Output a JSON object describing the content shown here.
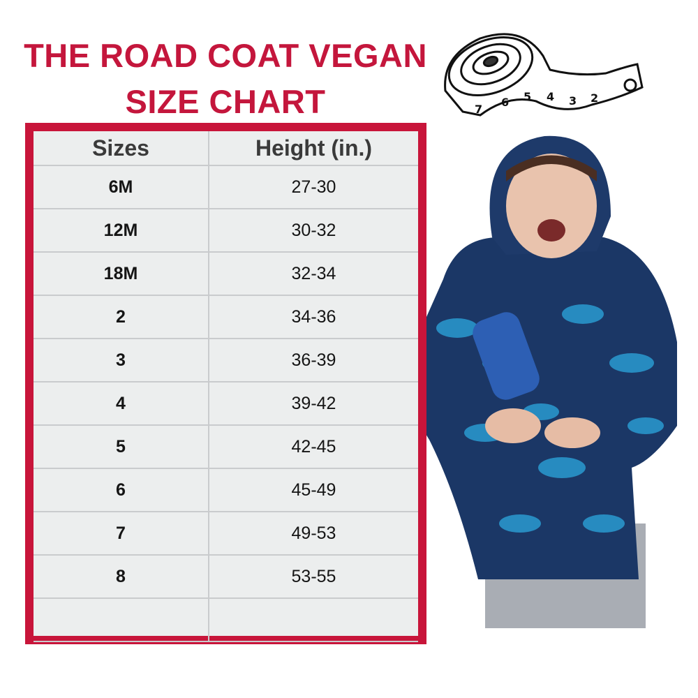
{
  "title": {
    "line1": "THE ROAD COAT VEGAN",
    "line2": "SIZE CHART",
    "color": "#c4163c"
  },
  "table": {
    "border_color": "#c8153a",
    "headers": [
      "Sizes",
      "Height (in.)"
    ],
    "rows": [
      [
        "6M",
        "27-30"
      ],
      [
        "12M",
        "30-32"
      ],
      [
        "18M",
        "32-34"
      ],
      [
        "2",
        "34-36"
      ],
      [
        "3",
        "36-39"
      ],
      [
        "4",
        "39-42"
      ],
      [
        "5",
        "42-45"
      ],
      [
        "6",
        "45-49"
      ],
      [
        "7",
        "49-53"
      ],
      [
        "8",
        "53-55"
      ],
      [
        "",
        ""
      ]
    ]
  },
  "images": {
    "tape_measure": "measuring-tape-illustration",
    "photo": "child-in-blue-dinosaur-print-coat"
  }
}
